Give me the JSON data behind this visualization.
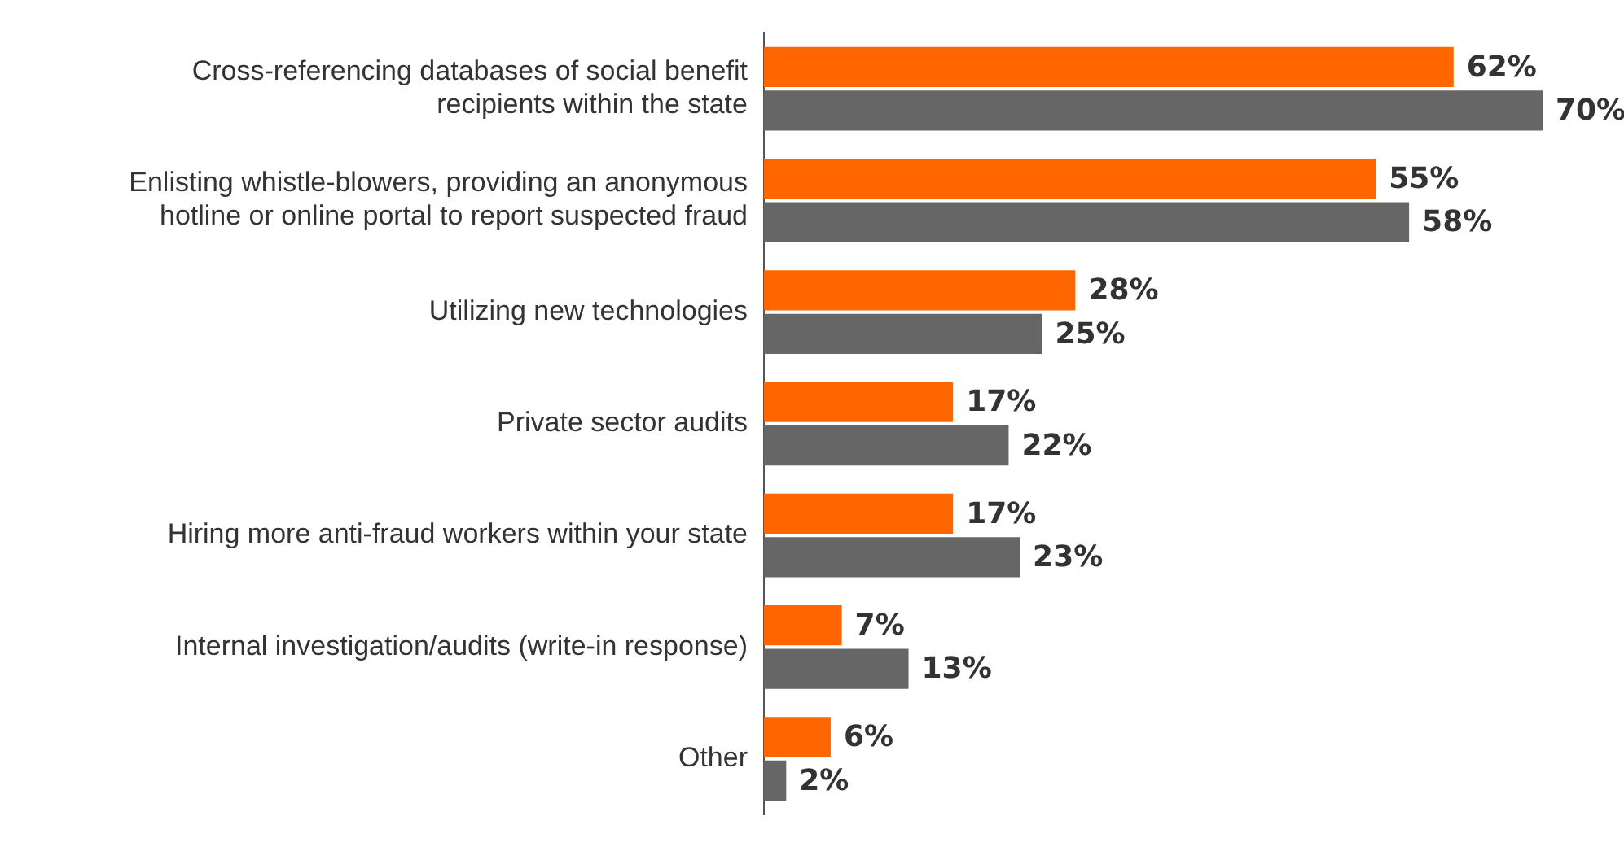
{
  "chart_data": {
    "type": "bar",
    "orientation": "horizontal",
    "categories": [
      "Cross-referencing databases of social benefit recipients within the state",
      "Enlisting whistle-blowers, providing an anonymous hotline or online portal to report suspected fraud",
      "Utilizing new technologies",
      "Private sector audits",
      "Hiring more anti-fraud workers within your state",
      "Internal investigation/audits (write-in response)",
      "Other"
    ],
    "series": [
      {
        "color": "#ff6600",
        "values": [
          62,
          55,
          28,
          17,
          17,
          7,
          6
        ],
        "value_labels": [
          "62%",
          "55%",
          "28%",
          "17%",
          "17%",
          "7%",
          "6%"
        ]
      },
      {
        "color": "#666666",
        "values": [
          70,
          58,
          25,
          22,
          23,
          13,
          2
        ],
        "value_labels": [
          "70%",
          "58%",
          "25%",
          "22%",
          "23%",
          "13%",
          "2%"
        ]
      }
    ],
    "legend": false,
    "tick_labels": "y"
  }
}
